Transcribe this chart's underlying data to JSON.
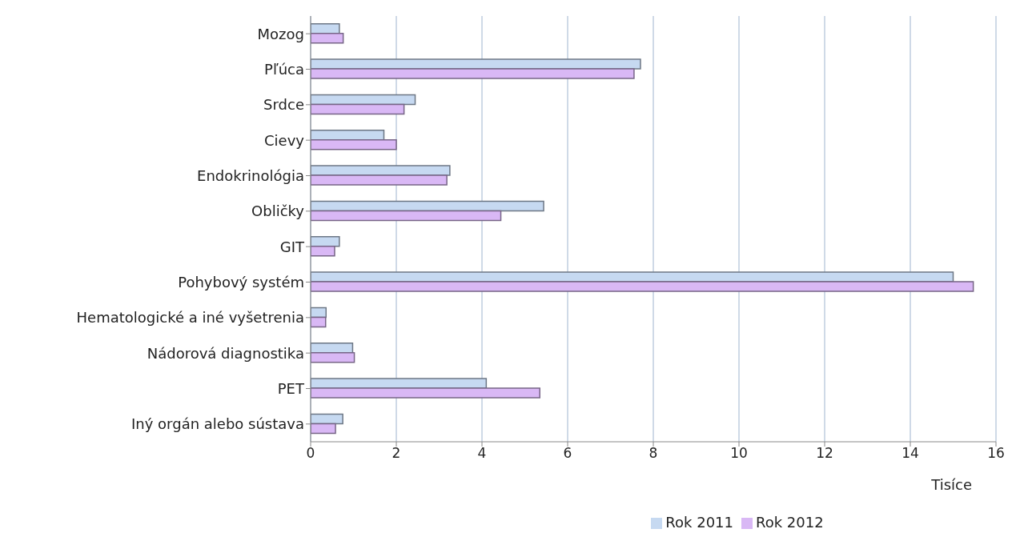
{
  "chart_data": {
    "type": "bar",
    "orientation": "horizontal",
    "xlabel": "Tisíce",
    "categories": [
      "Mozog",
      "Pľúca",
      "Srdce",
      "Cievy",
      "Endokrinológia",
      "Obličky",
      "GIT",
      "Pohybový systém",
      "Hematologické a iné vyšetrenia",
      "Nádorová diagnostika",
      "PET",
      "Iný orgán alebo sústava"
    ],
    "series": [
      {
        "name": "Rok 2011",
        "color": "#c6d9f1",
        "values": [
          0.67,
          7.7,
          2.44,
          1.71,
          3.25,
          5.44,
          0.67,
          15.0,
          0.36,
          0.98,
          4.1,
          0.75
        ]
      },
      {
        "name": "Rok 2012",
        "color": "#d9b8f5",
        "values": [
          0.76,
          7.55,
          2.18,
          2.0,
          3.18,
          4.44,
          0.56,
          15.47,
          0.35,
          1.02,
          5.35,
          0.58
        ]
      }
    ],
    "xlim": [
      0,
      16
    ],
    "xticks": [
      0,
      2,
      4,
      6,
      8,
      10,
      12,
      14,
      16
    ],
    "grid": "x",
    "legend": "bottom"
  }
}
